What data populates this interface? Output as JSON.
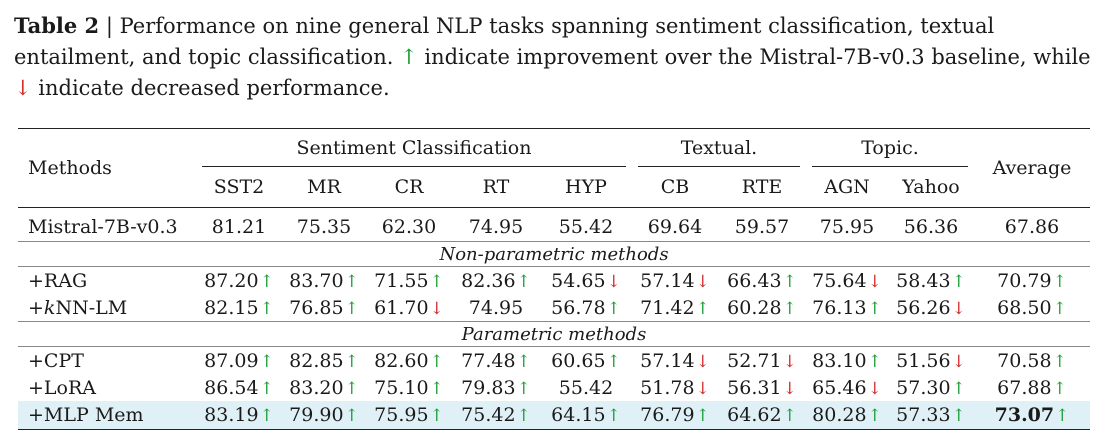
{
  "caption": {
    "label": "Table 2",
    "sep": " | ",
    "text1": "Performance on nine general NLP tasks spanning sentiment classification, textual entailment, and topic classification. ",
    "up_symbol": "↑",
    "text2": " indicate improvement over the Mistral-7B-v0.3 baseline, while ",
    "down_symbol": "↓",
    "text3": " indicate decreased performance."
  },
  "colors": {
    "up": "#1e9e3a",
    "down": "#d62d2d",
    "highlight_row": "#dff1f6"
  },
  "table": {
    "methods_header": "Methods",
    "average_header": "Average",
    "groups": [
      {
        "label": "Sentiment Classification",
        "span": 5
      },
      {
        "label": "Textual.",
        "span": 2
      },
      {
        "label": "Topic.",
        "span": 2
      }
    ],
    "columns": [
      "SST2",
      "MR",
      "CR",
      "RT",
      "HYP",
      "CB",
      "RTE",
      "AGN",
      "Yahoo"
    ],
    "baseline": {
      "method": "Mistral-7B-v0.3",
      "values": [
        "81.21",
        "75.35",
        "62.30",
        "74.95",
        "55.42",
        "69.64",
        "59.57",
        "75.95",
        "56.36",
        "67.86"
      ]
    },
    "section1": "Non-parametric methods",
    "section2": "Parametric methods",
    "rows_nonparam": [
      {
        "method": "+RAG",
        "values": [
          "87.20",
          "83.70",
          "71.55",
          "82.36",
          "54.65",
          "57.14",
          "66.43",
          "75.64",
          "58.43",
          "70.79"
        ],
        "arrows": [
          "up",
          "up",
          "up",
          "up",
          "down",
          "down",
          "up",
          "down",
          "up",
          "up"
        ]
      },
      {
        "method_prefix": "+",
        "method_italic": "k",
        "method_suffix": "NN-LM",
        "values": [
          "82.15",
          "76.85",
          "61.70",
          "74.95",
          "56.78",
          "71.42",
          "60.28",
          "76.13",
          "56.26",
          "68.50"
        ],
        "arrows": [
          "up",
          "up",
          "down",
          "",
          "up",
          "up",
          "up",
          "up",
          "down",
          "up"
        ]
      }
    ],
    "rows_param": [
      {
        "method": "+CPT",
        "values": [
          "87.09",
          "82.85",
          "82.60",
          "77.48",
          "60.65",
          "57.14",
          "52.71",
          "83.10",
          "51.56",
          "70.58"
        ],
        "arrows": [
          "up",
          "up",
          "up",
          "up",
          "up",
          "down",
          "down",
          "up",
          "down",
          "up"
        ]
      },
      {
        "method": "+LoRA",
        "values": [
          "86.54",
          "83.20",
          "75.10",
          "79.83",
          "55.42",
          "51.78",
          "56.31",
          "65.46",
          "57.30",
          "67.88"
        ],
        "arrows": [
          "up",
          "up",
          "up",
          "up",
          "",
          "down",
          "down",
          "down",
          "up",
          "up"
        ]
      },
      {
        "method": "+MLP Mem",
        "values": [
          "83.19",
          "79.90",
          "75.95",
          "75.42",
          "64.15",
          "76.79",
          "64.62",
          "80.28",
          "57.33",
          "73.07"
        ],
        "arrows": [
          "up",
          "up",
          "up",
          "up",
          "up",
          "up",
          "up",
          "up",
          "up",
          "up"
        ],
        "bold_last": true
      }
    ]
  }
}
